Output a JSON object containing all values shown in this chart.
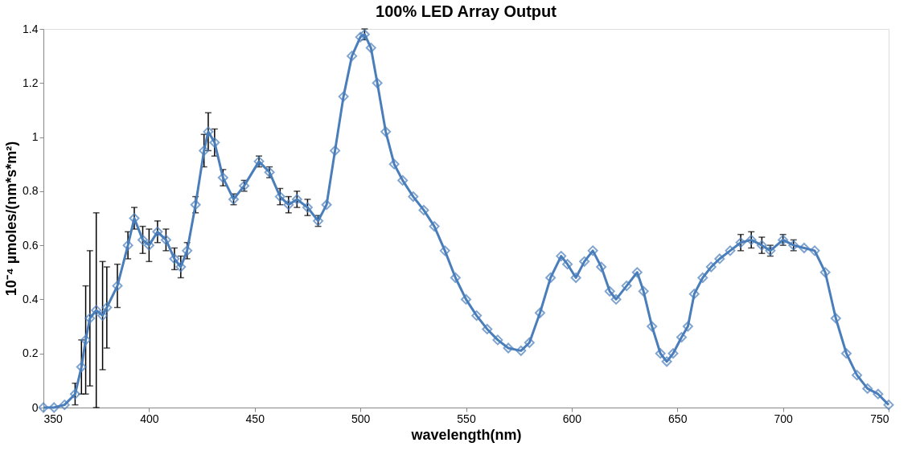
{
  "chart_data": {
    "type": "line",
    "title": "100% LED Array Output",
    "xlabel": "wavelength(nm)",
    "ylabel": "10⁻⁴ µmoles/(nm*s*m²)",
    "x": [
      350,
      355,
      360,
      365,
      368,
      370,
      372,
      375,
      378,
      380,
      385,
      390,
      393,
      397,
      400,
      404,
      408,
      412,
      415,
      418,
      422,
      426,
      428,
      431,
      435,
      440,
      445,
      452,
      457,
      462,
      466,
      470,
      475,
      480,
      484,
      488,
      492,
      496,
      500,
      502,
      505,
      508,
      512,
      516,
      520,
      525,
      530,
      535,
      540,
      545,
      550,
      555,
      560,
      565,
      570,
      576,
      580,
      585,
      590,
      595,
      598,
      602,
      606,
      610,
      614,
      618,
      621,
      626,
      631,
      634,
      638,
      642,
      645,
      648,
      652,
      655,
      658,
      662,
      666,
      670,
      675,
      680,
      685,
      690,
      694,
      700,
      705,
      710,
      715,
      720,
      725,
      730,
      735,
      740,
      745,
      750
    ],
    "series": [
      {
        "color": "#4a7ebb",
        "values": [
          0.0,
          0.0,
          0.01,
          0.05,
          0.15,
          0.25,
          0.33,
          0.36,
          0.34,
          0.37,
          0.45,
          0.6,
          0.7,
          0.62,
          0.6,
          0.65,
          0.62,
          0.55,
          0.52,
          0.58,
          0.75,
          0.95,
          1.02,
          0.98,
          0.85,
          0.77,
          0.82,
          0.91,
          0.87,
          0.78,
          0.75,
          0.77,
          0.74,
          0.69,
          0.75,
          0.95,
          1.15,
          1.3,
          1.37,
          1.38,
          1.33,
          1.2,
          1.02,
          0.9,
          0.84,
          0.78,
          0.73,
          0.67,
          0.58,
          0.48,
          0.4,
          0.34,
          0.29,
          0.25,
          0.22,
          0.21,
          0.24,
          0.35,
          0.48,
          0.56,
          0.53,
          0.48,
          0.54,
          0.58,
          0.52,
          0.43,
          0.4,
          0.45,
          0.5,
          0.43,
          0.3,
          0.2,
          0.17,
          0.2,
          0.26,
          0.3,
          0.42,
          0.48,
          0.52,
          0.55,
          0.58,
          0.61,
          0.62,
          0.6,
          0.58,
          0.62,
          0.6,
          0.59,
          0.58,
          0.5,
          0.33,
          0.2,
          0.12,
          0.07,
          0.05,
          0.01
        ],
        "errors": [
          null,
          null,
          null,
          0.04,
          0.1,
          0.2,
          0.25,
          0.36,
          0.2,
          0.15,
          0.08,
          0.05,
          0.04,
          0.05,
          0.06,
          0.04,
          0.04,
          0.04,
          0.04,
          0.03,
          0.03,
          0.06,
          0.07,
          0.05,
          0.03,
          0.02,
          0.02,
          0.02,
          0.02,
          0.03,
          0.03,
          0.03,
          0.03,
          0.02,
          null,
          null,
          null,
          null,
          null,
          0.02,
          null,
          null,
          null,
          null,
          null,
          null,
          null,
          null,
          null,
          null,
          null,
          null,
          null,
          null,
          null,
          null,
          null,
          null,
          null,
          null,
          null,
          null,
          null,
          null,
          null,
          null,
          null,
          null,
          null,
          null,
          null,
          null,
          null,
          null,
          null,
          null,
          null,
          null,
          null,
          null,
          null,
          0.03,
          0.03,
          0.03,
          0.02,
          0.02,
          0.02,
          null,
          null,
          null,
          null,
          null,
          null,
          null,
          null,
          null
        ]
      }
    ],
    "xlim": [
      350,
      750
    ],
    "xticks": [
      350,
      400,
      450,
      500,
      550,
      600,
      650,
      700,
      750
    ],
    "ylim": [
      0,
      1.4
    ],
    "yticks": [
      0,
      0.2,
      0.4,
      0.6,
      0.8,
      1,
      1.2,
      1.4
    ],
    "grid": false,
    "marker": "diamond",
    "line_style": "solid"
  }
}
